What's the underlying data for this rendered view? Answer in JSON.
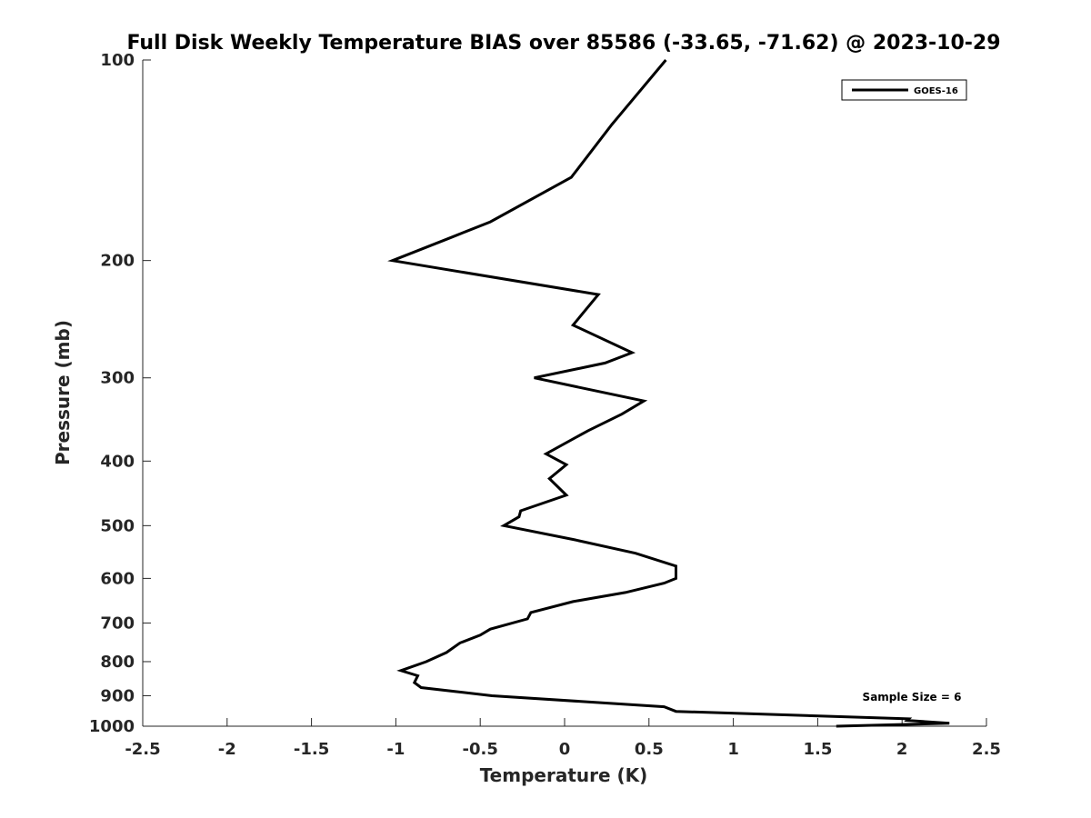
{
  "chart_data": {
    "type": "line",
    "title": "Full Disk Weekly Temperature BIAS over 85586 (-33.65, -71.62) @ 2023-10-29",
    "xlabel": "Temperature (K)",
    "ylabel": "Pressure (mb)",
    "xlim": [
      -2.5,
      2.5
    ],
    "ylim": [
      100,
      1000
    ],
    "y_scale": "log",
    "y_reversed": true,
    "grid": false,
    "legend_position": "top-right",
    "x_ticks": [
      "-2.5",
      "-2",
      "-1.5",
      "-1",
      "-0.5",
      "0",
      "0.5",
      "1",
      "1.5",
      "2",
      "2.5"
    ],
    "x_tick_values": [
      -2.5,
      -2,
      -1.5,
      -1,
      -0.5,
      0,
      0.5,
      1,
      1.5,
      2,
      2.5
    ],
    "y_ticks": [
      "100",
      "200",
      "300",
      "400",
      "500",
      "600",
      "700",
      "800",
      "900",
      "1000"
    ],
    "y_tick_values": [
      100,
      200,
      300,
      400,
      500,
      600,
      700,
      800,
      900,
      1000
    ],
    "annotation": "Sample Size = 6",
    "series": [
      {
        "name": "GOES-16",
        "color": "#000000",
        "x": [
          0.6,
          0.28,
          0.04,
          -0.44,
          -0.68,
          -1.02,
          0.2,
          0.05,
          0.4,
          0.24,
          -0.18,
          0.47,
          0.34,
          0.14,
          -0.11,
          0.01,
          -0.09,
          0.01,
          -0.26,
          -0.27,
          -0.36,
          0.06,
          0.42,
          0.66,
          0.66,
          0.59,
          0.36,
          0.05,
          -0.2,
          -0.22,
          -0.44,
          -0.5,
          -0.62,
          -0.7,
          -0.82,
          -0.97,
          -0.87,
          -0.89,
          -0.85,
          -0.43,
          0.59,
          0.66,
          2.04,
          2.03,
          2.28,
          1.61
        ],
        "y": [
          100,
          125,
          150,
          175,
          185,
          200,
          225,
          250,
          275,
          285,
          300,
          325,
          340,
          360,
          390,
          405,
          425,
          450,
          475,
          485,
          500,
          525,
          550,
          575,
          600,
          610,
          630,
          650,
          675,
          690,
          715,
          730,
          750,
          775,
          800,
          825,
          840,
          860,
          875,
          900,
          935,
          950,
          975,
          980,
          990,
          1000
        ]
      }
    ]
  }
}
